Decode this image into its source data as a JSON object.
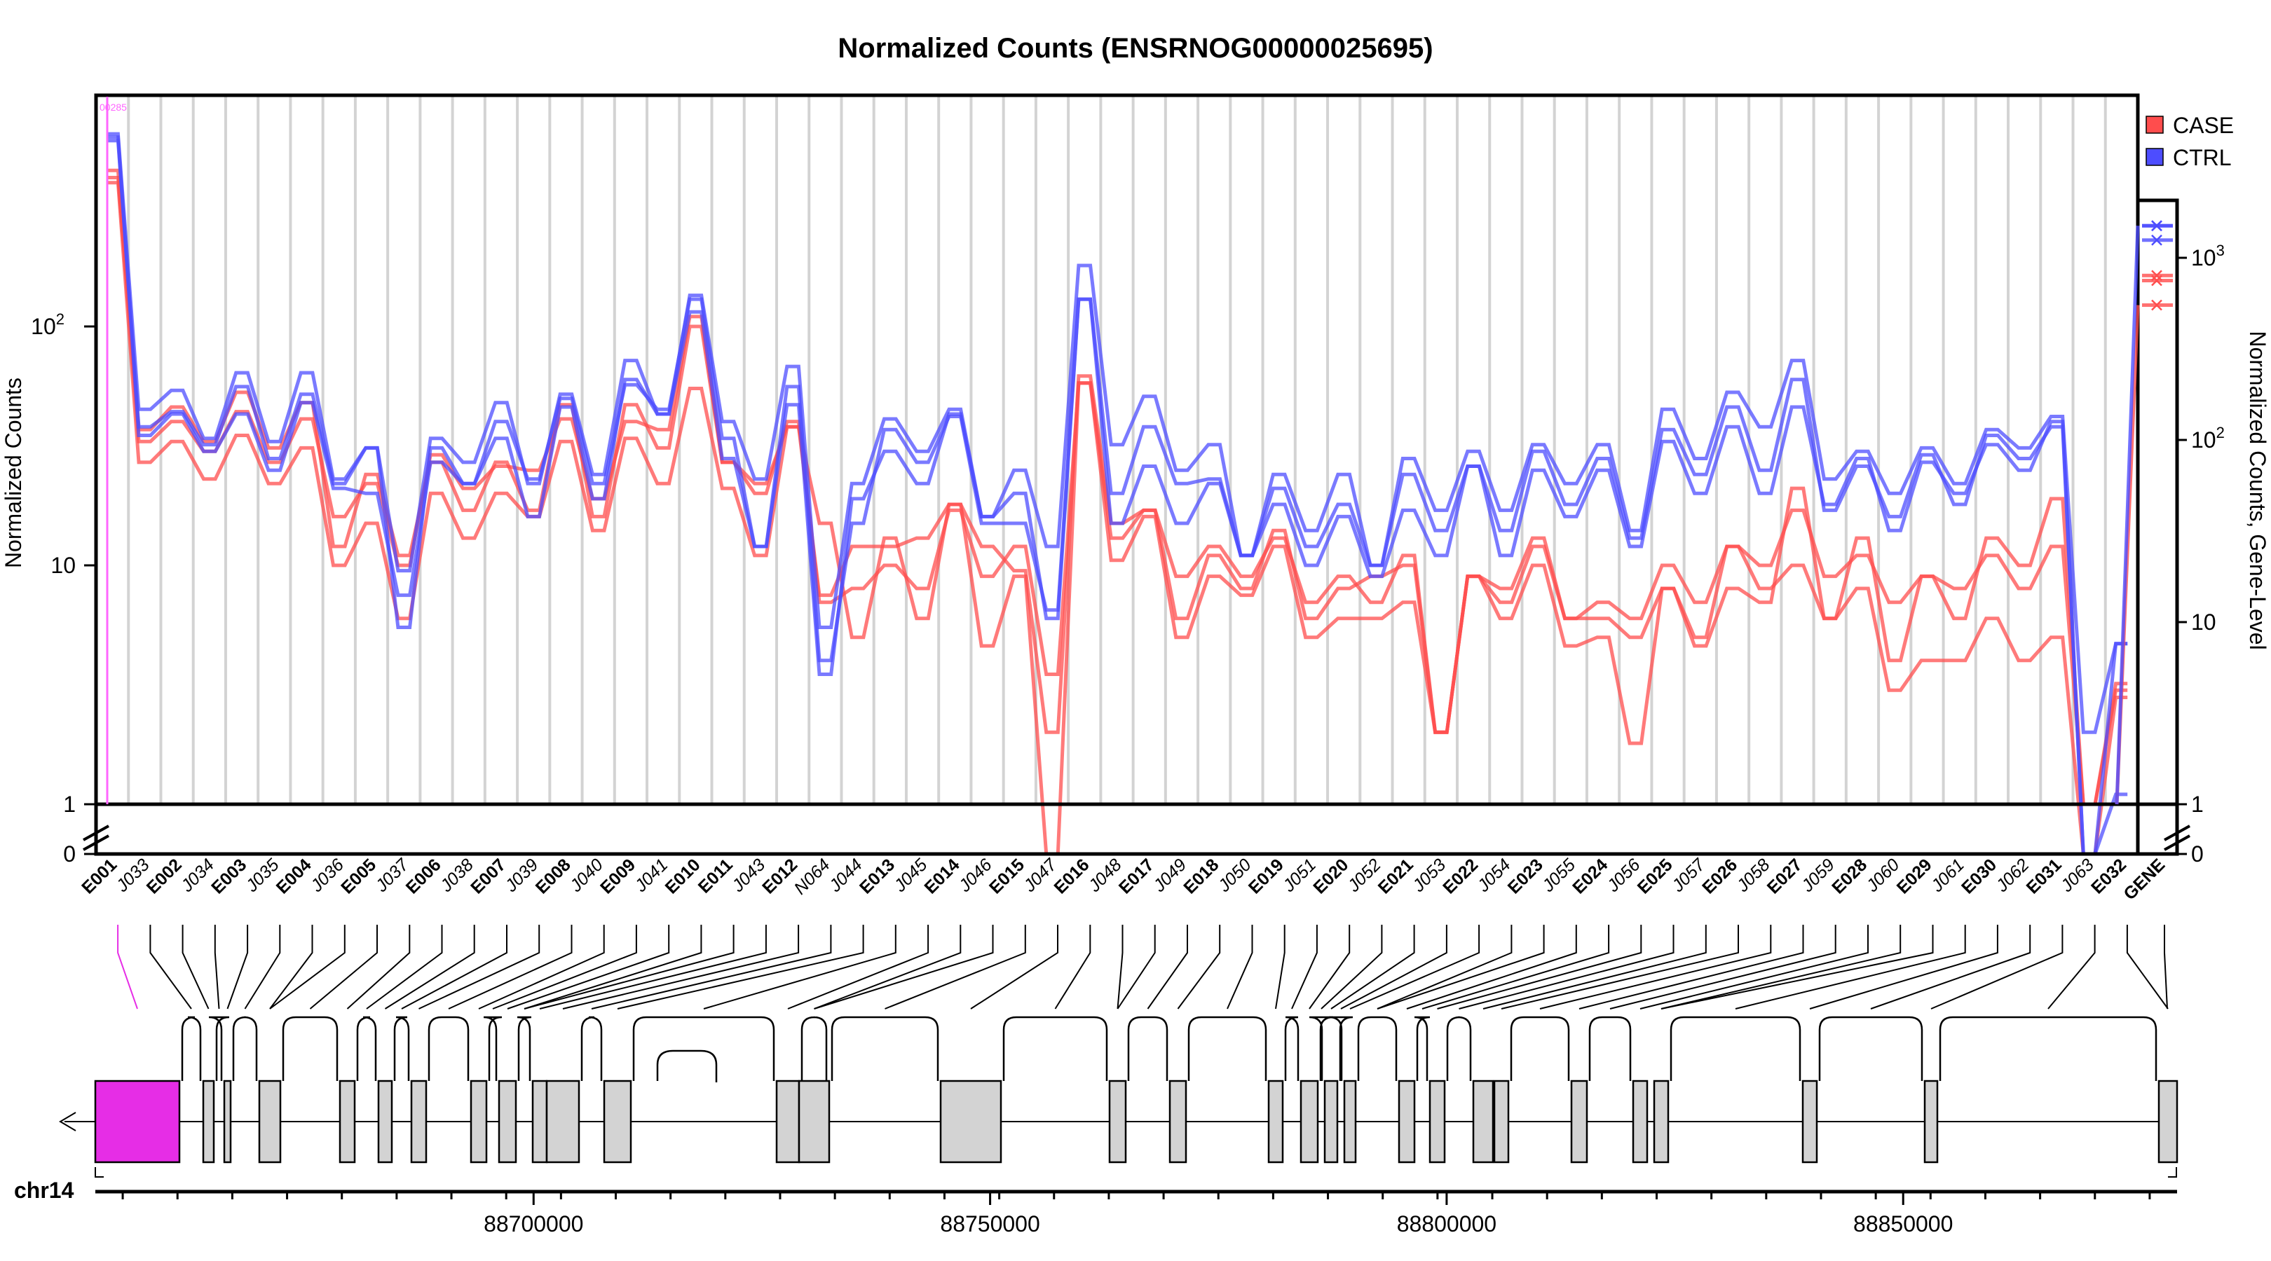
{
  "chart_data": {
    "type": "line",
    "title": "Normalized Counts (ENSRNOG00000025695)",
    "ylabel": "Normalized Counts",
    "ylabel_right": "Normalized Counts, Gene-Level",
    "yscale": "log",
    "ylim": [
      0,
      800
    ],
    "yticks": [
      {
        "value": 0,
        "label": "0"
      },
      {
        "value": 1,
        "label": "1"
      },
      {
        "value": 10,
        "label": "10"
      },
      {
        "value": 100,
        "label": "10",
        "sup": "2"
      }
    ],
    "ylim_right": [
      0,
      2000
    ],
    "yticks_right": [
      {
        "value": 0,
        "label": "0"
      },
      {
        "value": 1,
        "label": "1"
      },
      {
        "value": 10,
        "label": "10"
      },
      {
        "value": 100,
        "label": "10",
        "sup": "2"
      },
      {
        "value": 1000,
        "label": "10",
        "sup": "3"
      }
    ],
    "small_label": "00285",
    "legend": [
      {
        "name": "CASE",
        "color": "#ff4d4d"
      },
      {
        "name": "CTRL",
        "color": "#4d4dff"
      }
    ],
    "categories": [
      "E001",
      "J033",
      "E002",
      "J034",
      "E003",
      "J035",
      "E004",
      "J036",
      "E005",
      "J037",
      "E006",
      "J038",
      "E007",
      "J039",
      "E008",
      "J040",
      "E009",
      "J041",
      "E010",
      "E011",
      "J043",
      "E012",
      "N064",
      "J044",
      "E013",
      "J045",
      "E014",
      "J046",
      "E015",
      "J047",
      "E016",
      "J048",
      "E017",
      "J049",
      "E018",
      "J050",
      "E019",
      "J051",
      "E020",
      "J052",
      "E021",
      "J053",
      "E022",
      "J054",
      "E023",
      "J055",
      "E024",
      "J056",
      "E025",
      "J057",
      "E026",
      "J058",
      "E027",
      "J059",
      "E028",
      "J060",
      "E029",
      "J061",
      "E030",
      "J062",
      "E031",
      "J063",
      "E032"
    ],
    "series": [
      {
        "name": "CASE",
        "group": "CASE",
        "values": [
          450,
          33,
          40,
          30,
          44,
          27,
          41,
          16,
          22,
          10,
          29,
          21,
          26,
          25,
          41,
          19,
          40,
          37,
          110,
          27,
          22,
          38,
          7.5,
          12,
          12,
          13,
          18,
          12,
          9.5,
          2,
          62,
          15,
          17,
          9,
          12,
          9,
          13,
          7,
          9,
          7,
          11,
          2,
          9,
          7,
          12,
          6,
          7,
          6,
          10,
          7,
          12,
          10,
          17,
          9,
          11,
          7,
          9,
          8,
          11,
          8,
          12,
          1,
          3
        ]
      },
      {
        "name": "CASE",
        "group": "CASE",
        "values": [
          400,
          27,
          33,
          23,
          35,
          22,
          31,
          10,
          15,
          6,
          20,
          13,
          20,
          16,
          33,
          14,
          34,
          22,
          55,
          21,
          11,
          38,
          15,
          5,
          13,
          6,
          18,
          4.6,
          9,
          0,
          58,
          10.5,
          16,
          5,
          9,
          7.5,
          12,
          5,
          6,
          6,
          7,
          2,
          9,
          6,
          10,
          4.6,
          5,
          1.8,
          8,
          4.6,
          8,
          7,
          21,
          6,
          8,
          3,
          4,
          4,
          6,
          4,
          5,
          0.4,
          2.8
        ]
      },
      {
        "name": "CASE",
        "group": "CASE",
        "values": [
          420,
          37,
          46,
          33,
          53,
          31,
          48,
          12,
          24,
          11,
          27,
          17,
          27,
          17,
          47,
          16,
          47,
          31,
          100,
          27,
          20,
          40,
          7,
          8,
          10,
          8,
          17,
          9,
          12,
          3.5,
          58,
          13,
          17,
          6,
          11,
          8,
          14,
          6,
          8,
          9,
          10,
          2,
          9,
          8,
          13,
          6,
          6,
          5,
          8,
          5,
          12,
          8,
          10,
          6,
          13,
          4,
          9,
          6,
          13,
          10,
          19,
          1,
          3.2
        ]
      },
      {
        "name": "CTRL",
        "group": "CTRL",
        "values": [
          640,
          45,
          54,
          34,
          64,
          33,
          64,
          23,
          31,
          9.5,
          34,
          27,
          48,
          22,
          52,
          24,
          72,
          43,
          135,
          40,
          23,
          68,
          5.5,
          22,
          41,
          30,
          45,
          16,
          25,
          12,
          180,
          32,
          51,
          25,
          32,
          11,
          24,
          14,
          24,
          10,
          28,
          17,
          30,
          17,
          32,
          22,
          32,
          14,
          45,
          28,
          53,
          38,
          72,
          23,
          30,
          20,
          31,
          22,
          37,
          31,
          42,
          2,
          4.7
        ]
      },
      {
        "name": "CTRL",
        "group": "CTRL",
        "values": [
          620,
          35,
          43,
          30,
          43,
          25,
          48,
          21,
          20,
          7.5,
          27,
          22,
          34,
          16,
          46,
          19,
          60,
          43,
          115,
          28,
          12,
          47,
          3.5,
          19,
          30,
          22,
          43,
          16,
          20,
          6,
          130,
          15,
          26,
          15,
          22,
          11,
          18,
          10,
          16,
          9,
          17,
          11,
          26,
          11,
          25,
          16,
          25,
          12,
          33,
          20,
          38,
          20,
          46,
          18,
          28,
          14,
          27,
          20,
          32,
          25,
          40,
          0.4,
          1.1
        ]
      },
      {
        "name": "CTRL",
        "group": "CTRL",
        "values": [
          600,
          38,
          44,
          32,
          56,
          28,
          52,
          22,
          31,
          5.5,
          31,
          22,
          40,
          23,
          50,
          22,
          57,
          45,
          130,
          34,
          12,
          56,
          4,
          15,
          37,
          27,
          42,
          15,
          15,
          6.5,
          130,
          20,
          38,
          22,
          23,
          11,
          21,
          12,
          18,
          10,
          24,
          14,
          26,
          14,
          30,
          18,
          28,
          13,
          37,
          24,
          46,
          25,
          60,
          17,
          26,
          16,
          29,
          18,
          35,
          28,
          38,
          0.5,
          4.7
        ]
      }
    ],
    "gene_level": [
      {
        "group": "CASE",
        "values": [
          550,
          800,
          750
        ]
      },
      {
        "group": "CTRL",
        "values": [
          1500,
          1500,
          1250
        ]
      }
    ]
  },
  "genomic": {
    "chromosome": "chr14",
    "ticks": [
      {
        "value": 88700000,
        "label": "88700000"
      },
      {
        "value": 88750000,
        "label": "88750000"
      },
      {
        "value": 88800000,
        "label": "88800000"
      },
      {
        "value": 88850000,
        "label": "88850000"
      }
    ]
  },
  "gene_label": "GENE"
}
